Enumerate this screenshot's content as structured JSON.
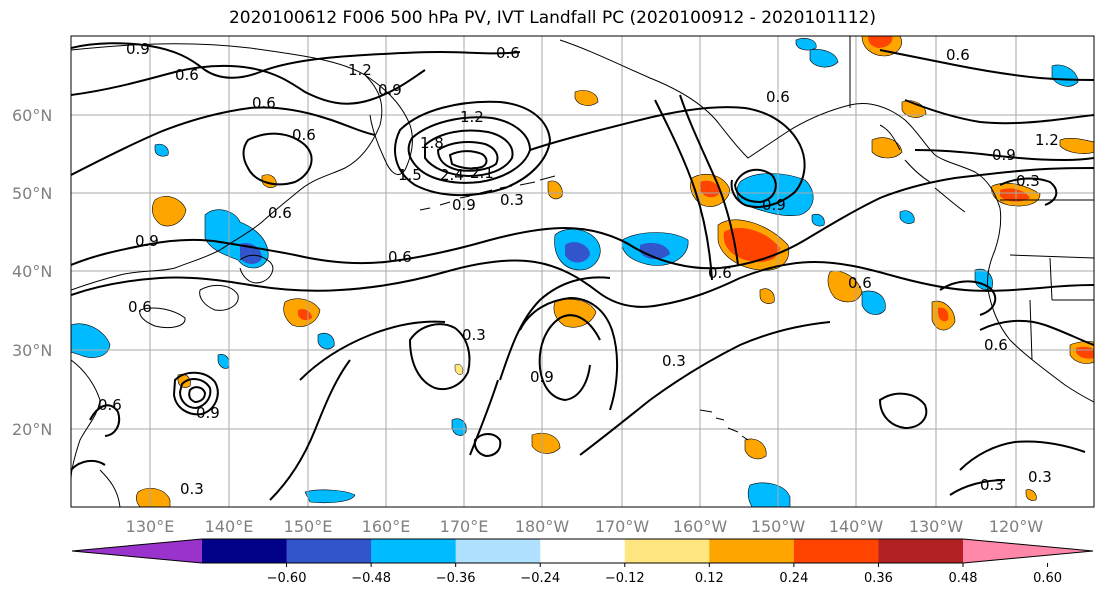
{
  "title": "2020100612 F006 500 hPa PV, IVT Landfall PC (2020100912 - 2020101112)",
  "lat_labels": [
    "60°N",
    "50°N",
    "40°N",
    "30°N",
    "20°N"
  ],
  "lon_labels": [
    "130°E",
    "140°E",
    "150°E",
    "160°E",
    "170°E",
    "180°W",
    "170°W",
    "160°W",
    "150°W",
    "140°W",
    "130°W",
    "120°W"
  ],
  "contour_labels": [
    "0.9",
    "0.6",
    "1.2",
    "0.9",
    "0.6",
    "0.6",
    "0.6",
    "1.2",
    "1.5",
    "1.8",
    "2.4",
    "2.1",
    "0.9",
    "0.3",
    "0.6",
    "0.6",
    "0.9",
    "0.6",
    "0.9",
    "0.6",
    "1.2",
    "0.9",
    "0.3",
    "0.6",
    "0.3",
    "0.9",
    "0.3",
    "0.6",
    "0.3",
    "0.3",
    "0.3",
    "0.6",
    "0.9",
    "0.6",
    "0.6"
  ],
  "colorbar": {
    "ticks": [
      "−0.60",
      "−0.48",
      "−0.36",
      "−0.24",
      "−0.12",
      "0.12",
      "0.24",
      "0.36",
      "0.48",
      "0.60"
    ],
    "colors": [
      "#9933cc",
      "#000088",
      "#3355cc",
      "#00bbff",
      "#b0e2ff",
      "#ffffff",
      "#ffe680",
      "#ffa500",
      "#ff4400",
      "#b22222",
      "#ff88aa"
    ]
  },
  "shading_colors": {
    "neg_light": "#b0e2ff",
    "neg_mid": "#00bbff",
    "neg_strong": "#3355cc",
    "pos_light": "#ffe680",
    "pos_mid": "#ffa500",
    "pos_strong": "#ff4400"
  }
}
